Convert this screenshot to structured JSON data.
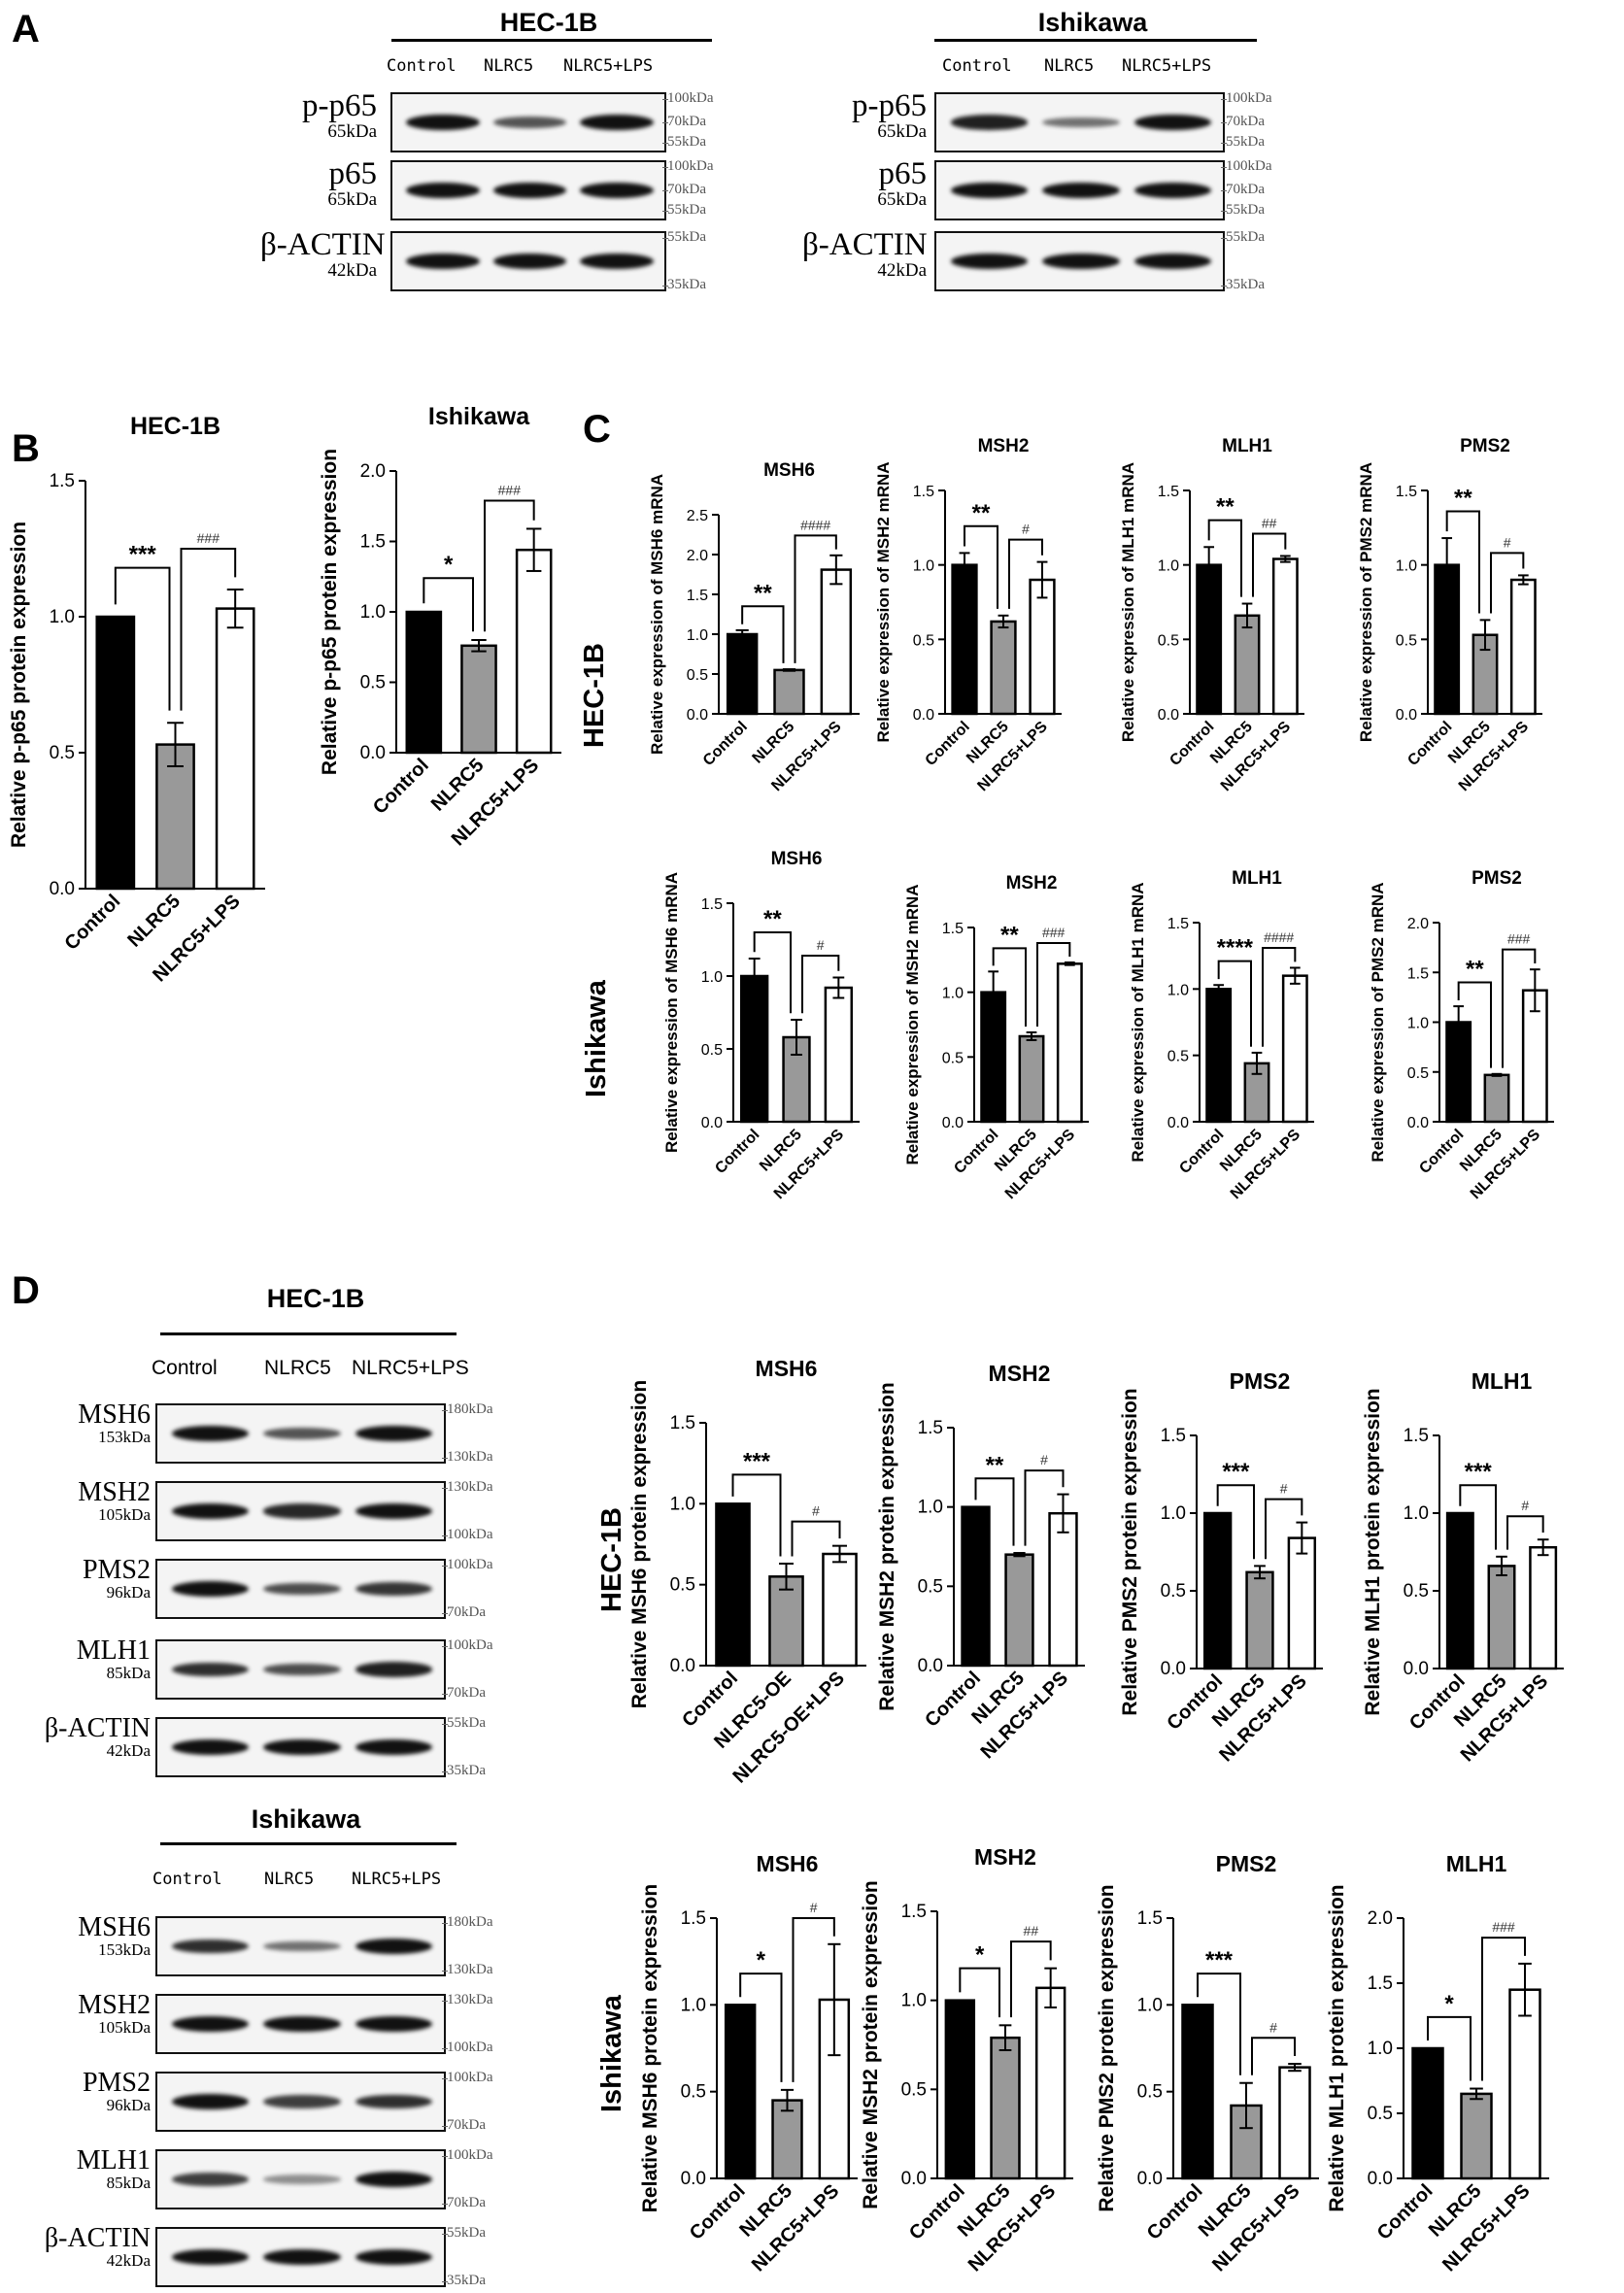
{
  "panels": {
    "A": "A",
    "B": "B",
    "C": "C",
    "D": "D"
  },
  "panelA": {
    "hec": {
      "title": "HEC-1B",
      "cols": [
        "Control",
        "NLRC5",
        "NLRC5+LPS"
      ],
      "rows": [
        {
          "name": "p-p65",
          "kda": "65kDa",
          "markers": [
            "100kDa",
            "70kDa",
            "55kDa"
          ]
        },
        {
          "name": "p65",
          "kda": "65kDa",
          "markers": [
            "100kDa",
            "70kDa",
            "55kDa"
          ]
        },
        {
          "name": "β-ACTIN",
          "kda": "42kDa",
          "markers": [
            "55kDa",
            "35kDa"
          ]
        }
      ]
    },
    "ishi": {
      "title": "Ishikawa",
      "cols": [
        "Control",
        "NLRC5",
        "NLRC5+LPS"
      ],
      "rows": [
        {
          "name": "p-p65",
          "kda": "65kDa",
          "markers": [
            "100kDa",
            "70kDa",
            "55kDa"
          ]
        },
        {
          "name": "p65",
          "kda": "65kDa",
          "markers": [
            "100kDa",
            "70kDa",
            "55kDa"
          ]
        },
        {
          "name": "β-ACTIN",
          "kda": "42kDa",
          "markers": [
            "55kDa",
            "35kDa"
          ]
        }
      ]
    }
  },
  "panelC_rows": {
    "hec": "HEC-1B",
    "ishi": "Ishikawa"
  },
  "panelD": {
    "hec": {
      "title": "HEC-1B",
      "cols": [
        "Control",
        "NLRC5",
        "NLRC5+LPS"
      ],
      "rows": [
        {
          "name": "MSH6",
          "kda": "153kDa",
          "markers": [
            "180kDa",
            "130kDa"
          ]
        },
        {
          "name": "MSH2",
          "kda": "105kDa",
          "markers": [
            "130kDa",
            "100kDa"
          ]
        },
        {
          "name": "PMS2",
          "kda": "96kDa",
          "markers": [
            "100kDa",
            "70kDa"
          ]
        },
        {
          "name": "MLH1",
          "kda": "85kDa",
          "markers": [
            "100kDa",
            "70kDa"
          ]
        },
        {
          "name": "β-ACTIN",
          "kda": "42kDa",
          "markers": [
            "55kDa",
            "35kDa"
          ]
        }
      ]
    },
    "ishi": {
      "title": "Ishikawa",
      "cols": [
        "Control",
        "NLRC5",
        "NLRC5+LPS"
      ],
      "rows": [
        {
          "name": "MSH6",
          "kda": "153kDa",
          "markers": [
            "180kDa",
            "130kDa"
          ]
        },
        {
          "name": "MSH2",
          "kda": "105kDa",
          "markers": [
            "130kDa",
            "100kDa"
          ]
        },
        {
          "name": "PMS2",
          "kda": "96kDa",
          "markers": [
            "100kDa",
            "70kDa"
          ]
        },
        {
          "name": "MLH1",
          "kda": "85kDa",
          "markers": [
            "100kDa",
            "70kDa"
          ]
        },
        {
          "name": "β-ACTIN",
          "kda": "42kDa",
          "markers": [
            "55kDa",
            "35kDa"
          ]
        }
      ]
    },
    "rows": {
      "hec": "HEC-1B",
      "ishi": "Ishikawa"
    }
  },
  "chart_data": [
    {
      "id": "B1",
      "type": "bar",
      "title": "HEC-1B",
      "ylabel": "Relative p-p65 protein expression",
      "categories": [
        "Control",
        "NLRC5",
        "NLRC5+LPS"
      ],
      "values": [
        1.0,
        0.53,
        1.03
      ],
      "errors": [
        0,
        0.08,
        0.07
      ],
      "ylim": [
        0,
        1.5
      ],
      "yticks": [
        "0.0",
        "0.5",
        "1.0",
        "1.5"
      ],
      "sig": [
        {
          "a": 0,
          "b": 1,
          "label": "***"
        },
        {
          "a": 1,
          "b": 2,
          "label": "###"
        }
      ]
    },
    {
      "id": "B2",
      "type": "bar",
      "title": "Ishikawa",
      "ylabel": "Relative p-p65 protein expression",
      "categories": [
        "Control",
        "NLRC5",
        "NLRC5+LPS"
      ],
      "values": [
        1.0,
        0.76,
        1.44
      ],
      "errors": [
        0,
        0.04,
        0.15
      ],
      "ylim": [
        0,
        2.0
      ],
      "yticks": [
        "0.0",
        "0.5",
        "1.0",
        "1.5",
        "2.0"
      ],
      "sig": [
        {
          "a": 0,
          "b": 1,
          "label": "*"
        },
        {
          "a": 1,
          "b": 2,
          "label": "###"
        }
      ]
    },
    {
      "id": "C1",
      "type": "bar",
      "title": "MSH6",
      "ylabel": "Relative expression of MSH6 mRNA",
      "categories": [
        "Control",
        "NLRC5",
        "NLRC5+LPS"
      ],
      "values": [
        1.0,
        0.55,
        1.81
      ],
      "errors": [
        0.05,
        0.01,
        0.18
      ],
      "ylim": [
        0,
        2.5
      ],
      "yticks": [
        "0.0",
        "0.5",
        "1.0",
        "1.5",
        "2.0",
        "2.5"
      ],
      "sig": [
        {
          "a": 0,
          "b": 1,
          "label": "**"
        },
        {
          "a": 1,
          "b": 2,
          "label": "####"
        }
      ]
    },
    {
      "id": "C2",
      "type": "bar",
      "title": "MSH2",
      "ylabel": "Relative expression of MSH2 mRNA",
      "categories": [
        "Control",
        "NLRC5",
        "NLRC5+LPS"
      ],
      "values": [
        1.0,
        0.62,
        0.9
      ],
      "errors": [
        0.08,
        0.04,
        0.12
      ],
      "ylim": [
        0,
        1.5
      ],
      "yticks": [
        "0.0",
        "0.5",
        "1.0",
        "1.5"
      ],
      "sig": [
        {
          "a": 0,
          "b": 1,
          "label": "**"
        },
        {
          "a": 1,
          "b": 2,
          "label": "#"
        }
      ]
    },
    {
      "id": "C3",
      "type": "bar",
      "title": "MLH1",
      "ylabel": "Relative expression of MLH1 mRNA",
      "categories": [
        "Control",
        "NLRC5",
        "NLRC5+LPS"
      ],
      "values": [
        1.0,
        0.66,
        1.04
      ],
      "errors": [
        0.12,
        0.08,
        0.02
      ],
      "ylim": [
        0,
        1.5
      ],
      "yticks": [
        "0.0",
        "0.5",
        "1.0",
        "1.5"
      ],
      "sig": [
        {
          "a": 0,
          "b": 1,
          "label": "**"
        },
        {
          "a": 1,
          "b": 2,
          "label": "##"
        }
      ]
    },
    {
      "id": "C4",
      "type": "bar",
      "title": "PMS2",
      "ylabel": "Relative expression of PMS2 mRNA",
      "categories": [
        "Control",
        "NLRC5",
        "NLRC5+LPS"
      ],
      "values": [
        1.0,
        0.53,
        0.9
      ],
      "errors": [
        0.18,
        0.1,
        0.03
      ],
      "ylim": [
        0,
        1.5
      ],
      "yticks": [
        "0.0",
        "0.5",
        "1.0",
        "1.5"
      ],
      "sig": [
        {
          "a": 0,
          "b": 1,
          "label": "**"
        },
        {
          "a": 1,
          "b": 2,
          "label": "#"
        }
      ]
    },
    {
      "id": "C5",
      "type": "bar",
      "title": "MSH6",
      "ylabel": "Relative expression of MSH6 mRNA",
      "categories": [
        "Control",
        "NLRC5",
        "NLRC5+LPS"
      ],
      "values": [
        1.0,
        0.58,
        0.92
      ],
      "errors": [
        0.12,
        0.12,
        0.07
      ],
      "ylim": [
        0,
        1.5
      ],
      "yticks": [
        "0.0",
        "0.5",
        "1.0",
        "1.5"
      ],
      "sig": [
        {
          "a": 0,
          "b": 1,
          "label": "**"
        },
        {
          "a": 1,
          "b": 2,
          "label": "#"
        }
      ]
    },
    {
      "id": "C6",
      "type": "bar",
      "title": "MSH2",
      "ylabel": "Relative expression of MSH2 mRNA",
      "categories": [
        "Control",
        "NLRC5",
        "NLRC5+LPS"
      ],
      "values": [
        1.0,
        0.66,
        1.22
      ],
      "errors": [
        0.16,
        0.03,
        0.01
      ],
      "ylim": [
        0,
        1.5
      ],
      "yticks": [
        "0.0",
        "0.5",
        "1.0",
        "1.5"
      ],
      "sig": [
        {
          "a": 0,
          "b": 1,
          "label": "**"
        },
        {
          "a": 1,
          "b": 2,
          "label": "###"
        }
      ]
    },
    {
      "id": "C7",
      "type": "bar",
      "title": "MLH1",
      "ylabel": "Relative expression of MLH1 mRNA",
      "categories": [
        "Control",
        "NLRC5",
        "NLRC5+LPS"
      ],
      "values": [
        1.0,
        0.44,
        1.1
      ],
      "errors": [
        0.03,
        0.08,
        0.06
      ],
      "ylim": [
        0,
        1.5
      ],
      "yticks": [
        "0.0",
        "0.5",
        "1.0",
        "1.5"
      ],
      "sig": [
        {
          "a": 0,
          "b": 1,
          "label": "****"
        },
        {
          "a": 1,
          "b": 2,
          "label": "####"
        }
      ]
    },
    {
      "id": "C8",
      "type": "bar",
      "title": "PMS2",
      "ylabel": "Relative expression of PMS2 mRNA",
      "categories": [
        "Control",
        "NLRC5",
        "NLRC5+LPS"
      ],
      "values": [
        1.0,
        0.47,
        1.32
      ],
      "errors": [
        0.16,
        0.01,
        0.21
      ],
      "ylim": [
        0,
        2.0
      ],
      "yticks": [
        "0.0",
        "0.5",
        "1.0",
        "1.5",
        "2.0"
      ],
      "sig": [
        {
          "a": 0,
          "b": 1,
          "label": "**"
        },
        {
          "a": 1,
          "b": 2,
          "label": "###"
        }
      ]
    },
    {
      "id": "D1",
      "type": "bar",
      "title": "MSH6",
      "ylabel": "Relative MSH6 protein expression",
      "categories": [
        "Control",
        "NLRC5-OE",
        "NLRC5-OE+LPS"
      ],
      "values": [
        1.0,
        0.55,
        0.69
      ],
      "errors": [
        0,
        0.08,
        0.05
      ],
      "ylim": [
        0,
        1.5
      ],
      "yticks": [
        "0.0",
        "0.5",
        "1.0",
        "1.5"
      ],
      "sig": [
        {
          "a": 0,
          "b": 1,
          "label": "***"
        },
        {
          "a": 1,
          "b": 2,
          "label": "#"
        }
      ]
    },
    {
      "id": "D2",
      "type": "bar",
      "title": "MSH2",
      "ylabel": "Relative MSH2 protein expression",
      "categories": [
        "Control",
        "NLRC5",
        "NLRC5+LPS"
      ],
      "values": [
        1.0,
        0.7,
        0.96
      ],
      "errors": [
        0,
        0.01,
        0.12
      ],
      "ylim": [
        0,
        1.5
      ],
      "yticks": [
        "0.0",
        "0.5",
        "1.0",
        "1.5"
      ],
      "sig": [
        {
          "a": 0,
          "b": 1,
          "label": "**"
        },
        {
          "a": 1,
          "b": 2,
          "label": "#"
        }
      ]
    },
    {
      "id": "D3",
      "type": "bar",
      "title": "PMS2",
      "ylabel": "Relative PMS2 protein expression",
      "categories": [
        "Control",
        "NLRC5",
        "NLRC5+LPS"
      ],
      "values": [
        1.0,
        0.62,
        0.84
      ],
      "errors": [
        0,
        0.04,
        0.1
      ],
      "ylim": [
        0,
        1.5
      ],
      "yticks": [
        "0.0",
        "0.5",
        "1.0",
        "1.5"
      ],
      "sig": [
        {
          "a": 0,
          "b": 1,
          "label": "***"
        },
        {
          "a": 1,
          "b": 2,
          "label": "#"
        }
      ]
    },
    {
      "id": "D4",
      "type": "bar",
      "title": "MLH1",
      "ylabel": "Relative MLH1 protein expression",
      "categories": [
        "Control",
        "NLRC5",
        "NLRC5+LPS"
      ],
      "values": [
        1.0,
        0.66,
        0.78
      ],
      "errors": [
        0,
        0.06,
        0.05
      ],
      "ylim": [
        0,
        1.5
      ],
      "yticks": [
        "0.0",
        "0.5",
        "1.0",
        "1.5"
      ],
      "sig": [
        {
          "a": 0,
          "b": 1,
          "label": "***"
        },
        {
          "a": 1,
          "b": 2,
          "label": "#"
        }
      ]
    },
    {
      "id": "D5",
      "type": "bar",
      "title": "MSH6",
      "ylabel": "Relative MSH6 protein expression",
      "categories": [
        "Control",
        "NLRC5",
        "NLRC5+LPS"
      ],
      "values": [
        1.0,
        0.45,
        1.03
      ],
      "errors": [
        0,
        0.06,
        0.32
      ],
      "ylim": [
        0,
        1.5
      ],
      "yticks": [
        "0.0",
        "0.5",
        "1.0",
        "1.5"
      ],
      "sig": [
        {
          "a": 0,
          "b": 1,
          "label": "*"
        },
        {
          "a": 1,
          "b": 2,
          "label": "#"
        }
      ]
    },
    {
      "id": "D6",
      "type": "bar",
      "title": "MSH2",
      "ylabel": "Relative MSH2 protein expression",
      "categories": [
        "Control",
        "NLRC5",
        "NLRC5+LPS"
      ],
      "values": [
        1.0,
        0.79,
        1.07
      ],
      "errors": [
        0,
        0.07,
        0.11
      ],
      "ylim": [
        0,
        1.5
      ],
      "yticks": [
        "0.0",
        "0.5",
        "1.0",
        "1.5"
      ],
      "sig": [
        {
          "a": 0,
          "b": 1,
          "label": "*"
        },
        {
          "a": 1,
          "b": 2,
          "label": "##"
        }
      ]
    },
    {
      "id": "D7",
      "type": "bar",
      "title": "PMS2",
      "ylabel": "Relative PMS2 protein expression",
      "categories": [
        "Control",
        "NLRC5",
        "NLRC5+LPS"
      ],
      "values": [
        1.0,
        0.42,
        0.64
      ],
      "errors": [
        0,
        0.13,
        0.02
      ],
      "ylim": [
        0,
        1.5
      ],
      "yticks": [
        "0.0",
        "0.5",
        "1.0",
        "1.5"
      ],
      "sig": [
        {
          "a": 0,
          "b": 1,
          "label": "***"
        },
        {
          "a": 1,
          "b": 2,
          "label": "#"
        }
      ]
    },
    {
      "id": "D8",
      "type": "bar",
      "title": "MLH1",
      "ylabel": "Relative MLH1 protein expression",
      "categories": [
        "Control",
        "NLRC5",
        "NLRC5+LPS"
      ],
      "values": [
        1.0,
        0.65,
        1.45
      ],
      "errors": [
        0,
        0.04,
        0.2
      ],
      "ylim": [
        0,
        2.0
      ],
      "yticks": [
        "0.0",
        "0.5",
        "1.0",
        "1.5",
        "2.0"
      ],
      "sig": [
        {
          "a": 0,
          "b": 1,
          "label": "*"
        },
        {
          "a": 1,
          "b": 2,
          "label": "###"
        }
      ]
    }
  ]
}
